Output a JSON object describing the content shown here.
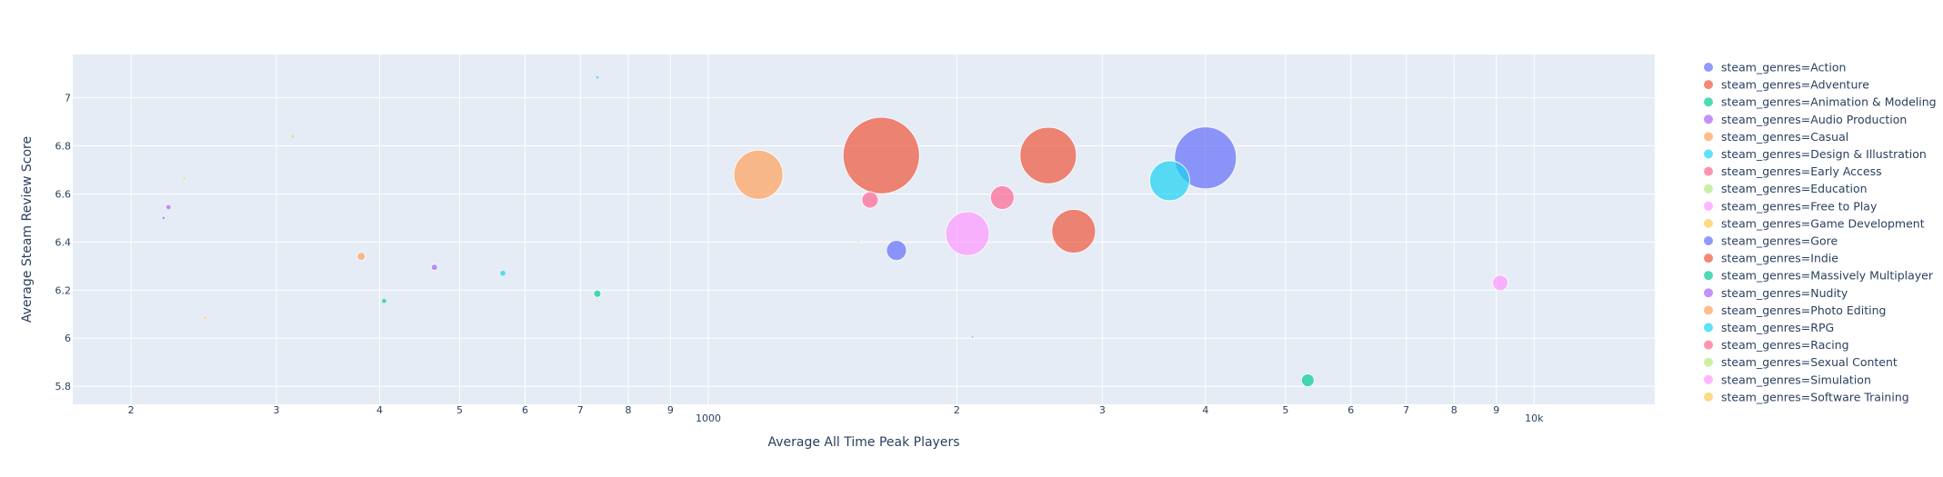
{
  "chart_data": {
    "type": "scatter",
    "title": "",
    "xlabel": "Average All Time Peak Players",
    "ylabel": "Average Steam Review Score",
    "x_scale": "log",
    "xlim": [
      170,
      14000
    ],
    "ylim": [
      5.725,
      7.18
    ],
    "x_tick_labels": [
      {
        "value": 200,
        "label": "2"
      },
      {
        "value": 300,
        "label": "3"
      },
      {
        "value": 400,
        "label": "4"
      },
      {
        "value": 500,
        "label": "5"
      },
      {
        "value": 600,
        "label": "6"
      },
      {
        "value": 700,
        "label": "7"
      },
      {
        "value": 800,
        "label": "8"
      },
      {
        "value": 900,
        "label": "9"
      },
      {
        "value": 1000,
        "label": "1000"
      },
      {
        "value": 2000,
        "label": "2"
      },
      {
        "value": 3000,
        "label": "3"
      },
      {
        "value": 4000,
        "label": "4"
      },
      {
        "value": 5000,
        "label": "5"
      },
      {
        "value": 6000,
        "label": "6"
      },
      {
        "value": 7000,
        "label": "7"
      },
      {
        "value": 8000,
        "label": "8"
      },
      {
        "value": 9000,
        "label": "9"
      },
      {
        "value": 10000,
        "label": "10k"
      }
    ],
    "y_tick_labels": [
      {
        "value": 5.8,
        "label": "5.8"
      },
      {
        "value": 6.0,
        "label": "6"
      },
      {
        "value": 6.2,
        "label": "6.2"
      },
      {
        "value": 6.4,
        "label": "6.4"
      },
      {
        "value": 6.6,
        "label": "6.6"
      },
      {
        "value": 6.8,
        "label": "6.8"
      },
      {
        "value": 7.0,
        "label": "7"
      }
    ],
    "grid": true,
    "legend_position": "right",
    "series": [
      {
        "name": "steam_genres=Action",
        "color": "#636efa",
        "points": [
          {
            "x": 4000,
            "y": 6.75,
            "r": 34
          }
        ]
      },
      {
        "name": "steam_genres=Adventure",
        "color": "#EF553B",
        "points": [
          {
            "x": 1620,
            "y": 6.76,
            "r": 42
          }
        ]
      },
      {
        "name": "steam_genres=Animation & Modeling",
        "color": "#00cc96",
        "points": [
          {
            "x": 405,
            "y": 6.155,
            "r": 2.5
          }
        ]
      },
      {
        "name": "steam_genres=Audio Production",
        "color": "#ab63fa",
        "points": [
          {
            "x": 222,
            "y": 6.545,
            "r": 2.5
          }
        ]
      },
      {
        "name": "steam_genres=Casual",
        "color": "#FFA15A",
        "points": [
          {
            "x": 1150,
            "y": 6.68,
            "r": 27
          }
        ]
      },
      {
        "name": "steam_genres=Design & Illustration",
        "color": "#19d3f3",
        "points": [
          {
            "x": 3620,
            "y": 6.655,
            "r": 22
          }
        ]
      },
      {
        "name": "steam_genres=Early Access",
        "color": "#FF6692",
        "points": [
          {
            "x": 2270,
            "y": 6.585,
            "r": 13
          }
        ]
      },
      {
        "name": "steam_genres=Education",
        "color": "#B6E880",
        "points": [
          {
            "x": 232,
            "y": 6.665,
            "r": 1.5
          }
        ]
      },
      {
        "name": "steam_genres=Free to Play",
        "color": "#FF97FF",
        "points": [
          {
            "x": 2060,
            "y": 6.435,
            "r": 24
          }
        ]
      },
      {
        "name": "steam_genres=Game Development",
        "color": "#FECB52",
        "points": [
          {
            "x": 1520,
            "y": 6.4,
            "r": 1
          }
        ]
      },
      {
        "name": "steam_genres=Gore",
        "color": "#636efa",
        "points": [
          {
            "x": 1690,
            "y": 6.365,
            "r": 11
          }
        ]
      },
      {
        "name": "steam_genres=Indie",
        "color": "#EF553B",
        "points": [
          {
            "x": 2580,
            "y": 6.76,
            "r": 31
          },
          {
            "x": 2770,
            "y": 6.445,
            "r": 24
          }
        ]
      },
      {
        "name": "steam_genres=Massively Multiplayer",
        "color": "#00cc96",
        "points": [
          {
            "x": 734,
            "y": 6.185,
            "r": 4
          },
          {
            "x": 5320,
            "y": 5.825,
            "r": 7
          }
        ]
      },
      {
        "name": "steam_genres=Nudity",
        "color": "#ab63fa",
        "points": [
          {
            "x": 466,
            "y": 6.295,
            "r": 3.5
          },
          {
            "x": 219,
            "y": 6.5,
            "r": 1.5
          },
          {
            "x": 2090,
            "y": 6.005,
            "r": 1
          }
        ]
      },
      {
        "name": "steam_genres=Photo Editing",
        "color": "#FFA15A",
        "points": [
          {
            "x": 380,
            "y": 6.34,
            "r": 4.5
          }
        ]
      },
      {
        "name": "steam_genres=RPG",
        "color": "#19d3f3",
        "points": [
          {
            "x": 564,
            "y": 6.27,
            "r": 3
          },
          {
            "x": 734,
            "y": 7.085,
            "r": 1.5
          }
        ]
      },
      {
        "name": "steam_genres=Racing",
        "color": "#FF6692",
        "points": [
          {
            "x": 1570,
            "y": 6.575,
            "r": 9
          }
        ]
      },
      {
        "name": "steam_genres=Sexual Content",
        "color": "#B6E880",
        "points": [
          {
            "x": 314,
            "y": 6.84,
            "r": 2
          }
        ]
      },
      {
        "name": "steam_genres=Simulation",
        "color": "#FF97FF",
        "points": [
          {
            "x": 9100,
            "y": 6.23,
            "r": 8.5
          }
        ]
      },
      {
        "name": "steam_genres=Software Training",
        "color": "#FECB52",
        "points": [
          {
            "x": 246,
            "y": 6.085,
            "r": 1.5
          }
        ]
      }
    ]
  }
}
